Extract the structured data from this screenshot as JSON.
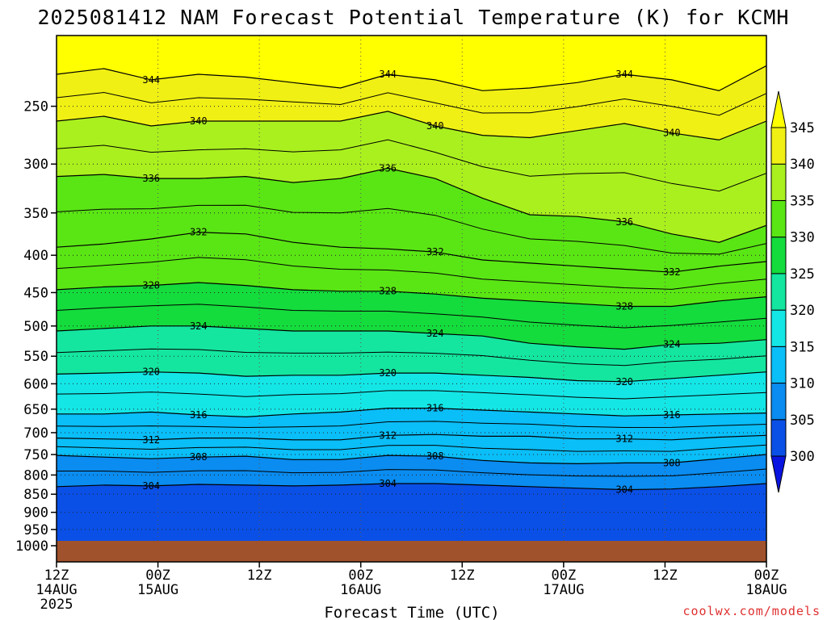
{
  "chart_data": {
    "type": "heatmap",
    "title": "2025081412 NAM Forecast Potential Temperature (K) for KCMH",
    "xlabel": "Forecast Time (UTC)",
    "ylabel": "",
    "y_axis": "pressure (hPa), log-like, inverted",
    "y_ticks": [
      250,
      300,
      350,
      400,
      450,
      500,
      550,
      600,
      650,
      700,
      750,
      800,
      850,
      900,
      950,
      1000
    ],
    "x_ticks": [
      {
        "line1": "12Z",
        "line2": "14AUG",
        "line3": "2025"
      },
      {
        "line1": "00Z",
        "line2": "15AUG",
        "line3": ""
      },
      {
        "line1": "12Z",
        "line2": "",
        "line3": ""
      },
      {
        "line1": "00Z",
        "line2": "16AUG",
        "line3": ""
      },
      {
        "line1": "12Z",
        "line2": "",
        "line3": ""
      },
      {
        "line1": "00Z",
        "line2": "17AUG",
        "line3": ""
      },
      {
        "line1": "12Z",
        "line2": "",
        "line3": ""
      },
      {
        "line1": "00Z",
        "line2": "18AUG",
        "line3": ""
      }
    ],
    "colorbar": {
      "levels": [
        300,
        305,
        310,
        315,
        320,
        325,
        330,
        335,
        340,
        345
      ],
      "colors": [
        "#0a14e0",
        "#0a50e6",
        "#0a8cf0",
        "#0abef8",
        "#14e6e6",
        "#14e6a0",
        "#14dc3c",
        "#5ae614",
        "#aaf01e",
        "#f0f014",
        "#ffff00"
      ]
    },
    "contour_levels_labeled": [
      344,
      340,
      336,
      332,
      328,
      324,
      320,
      316,
      312,
      308,
      304
    ],
    "contours": [
      {
        "value": 344,
        "p": [
          226,
          222,
          230,
          226,
          228,
          232,
          236,
          226,
          230,
          238,
          236,
          232,
          226,
          230,
          238,
          220
        ]
      },
      {
        "value": 340,
        "p": [
          262,
          258,
          266,
          262,
          262,
          262,
          262,
          254,
          266,
          274,
          276,
          270,
          264,
          272,
          278,
          262
        ]
      },
      {
        "value": 336,
        "p": [
          312,
          310,
          314,
          314,
          312,
          318,
          314,
          304,
          314,
          334,
          352,
          354,
          360,
          374,
          384,
          364
        ]
      },
      {
        "value": 332,
        "p": [
          390,
          386,
          380,
          372,
          374,
          384,
          390,
          392,
          396,
          406,
          410,
          414,
          418,
          422,
          414,
          408
        ]
      },
      {
        "value": 328,
        "p": [
          446,
          442,
          440,
          436,
          440,
          446,
          448,
          448,
          452,
          458,
          462,
          466,
          470,
          470,
          462,
          456
        ]
      },
      {
        "value": 324,
        "p": [
          508,
          504,
          500,
          500,
          504,
          508,
          508,
          508,
          512,
          516,
          528,
          534,
          538,
          530,
          528,
          522
        ]
      },
      {
        "value": 320,
        "p": [
          582,
          580,
          578,
          580,
          586,
          584,
          584,
          580,
          580,
          584,
          588,
          594,
          596,
          590,
          584,
          578
        ]
      },
      {
        "value": 316,
        "p": [
          660,
          660,
          656,
          662,
          666,
          660,
          656,
          648,
          648,
          652,
          656,
          660,
          664,
          662,
          660,
          658
        ]
      },
      {
        "value": 312,
        "p": [
          712,
          714,
          716,
          712,
          712,
          716,
          716,
          706,
          704,
          708,
          708,
          714,
          714,
          716,
          710,
          706
        ]
      },
      {
        "value": 308,
        "p": [
          752,
          756,
          760,
          756,
          754,
          762,
          762,
          752,
          754,
          764,
          770,
          772,
          770,
          770,
          760,
          750
        ]
      },
      {
        "value": 304,
        "p": [
          830,
          826,
          828,
          824,
          826,
          828,
          826,
          822,
          822,
          826,
          830,
          834,
          838,
          836,
          830,
          822
        ]
      }
    ],
    "grid": true,
    "legend_placement": "right"
  },
  "credit": "coolwx.com/models"
}
